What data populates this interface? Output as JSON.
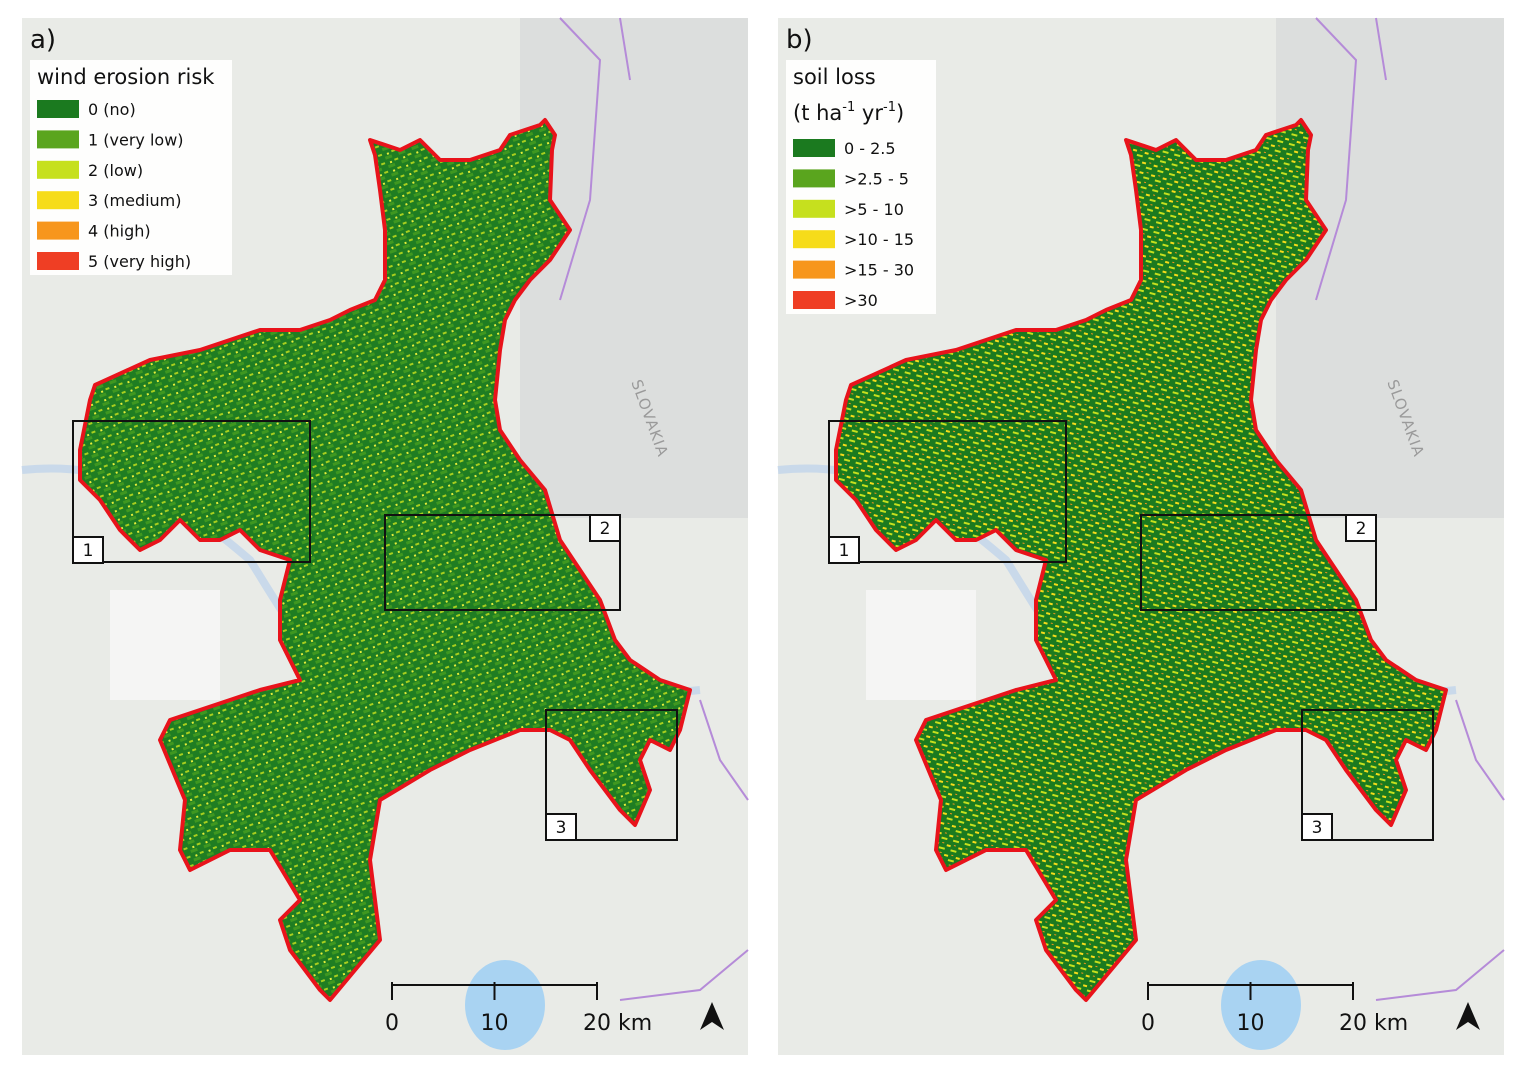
{
  "panels": [
    {
      "label": "a)",
      "legend": {
        "title": [
          "wind erosion risk"
        ],
        "items": [
          {
            "label": "0 (no)",
            "color": "#1b7a1f"
          },
          {
            "label": "1 (very low)",
            "color": "#5aa51e"
          },
          {
            "label": "2 (low)",
            "color": "#c6e01e"
          },
          {
            "label": "3 (medium)",
            "color": "#f6dc1a"
          },
          {
            "label": "4 (high)",
            "color": "#f7961c"
          },
          {
            "label": "5 (very high)",
            "color": "#ef3e24"
          }
        ]
      },
      "boxes": [
        "1",
        "2",
        "3"
      ],
      "country": "SLOVAKIA",
      "scale": {
        "ticks": [
          0,
          10,
          {
            "value": 20,
            "label": "20 km"
          }
        ]
      }
    },
    {
      "label": "b)",
      "legend": {
        "title": [
          "soil loss"
        ],
        "unit": [
          "(t ha",
          "-1",
          " yr",
          "-1",
          ")"
        ],
        "items": [
          {
            "label": "0 - 2.5",
            "color": "#1b7a1f"
          },
          {
            "label": ">2.5 - 5",
            "color": "#5aa51e"
          },
          {
            "label": ">5 - 10",
            "color": "#c6e01e"
          },
          {
            "label": ">10 - 15",
            "color": "#f6dc1a"
          },
          {
            "label": ">15 - 30",
            "color": "#f7961c"
          },
          {
            "label": ">30",
            "color": "#ef3e24"
          }
        ]
      },
      "boxes": [
        "1",
        "2",
        "3"
      ],
      "country": "SLOVAKIA",
      "scale": {
        "ticks": [
          0,
          10,
          {
            "value": 20,
            "label": "20 km"
          }
        ]
      }
    }
  ]
}
